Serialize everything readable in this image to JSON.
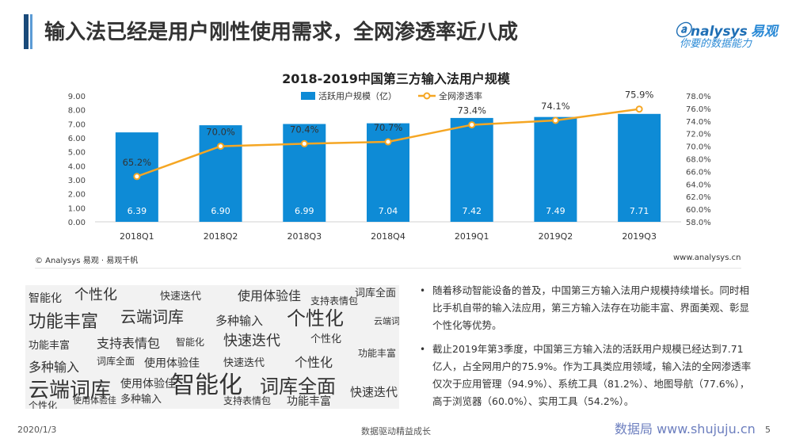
{
  "header": {
    "title": "输入法已经是用户刚性使用需求，全网渗透率近八成",
    "logo_brand": "nalysys",
    "logo_brand_cn": "易观",
    "logo_slogan": "你要的数据能力"
  },
  "chart_data": {
    "type": "bar",
    "title": "2018-2019中国第三方输入法用户规模",
    "categories": [
      "2018Q1",
      "2018Q2",
      "2018Q3",
      "2018Q4",
      "2019Q1",
      "2019Q2",
      "2019Q3"
    ],
    "series": [
      {
        "name": "活跃用户规模（亿）",
        "type": "bar",
        "axis": "left",
        "values": [
          6.39,
          6.9,
          6.99,
          7.04,
          7.42,
          7.49,
          7.71
        ],
        "labels": [
          "6.39",
          "6.90",
          "6.99",
          "7.04",
          "7.42",
          "7.49",
          "7.71"
        ]
      },
      {
        "name": "全网渗透率",
        "type": "line",
        "axis": "right",
        "values": [
          65.2,
          70.0,
          70.4,
          70.7,
          73.4,
          74.1,
          75.9
        ],
        "labels": [
          "65.2%",
          "70.0%",
          "70.4%",
          "70.7%",
          "73.4%",
          "74.1%",
          "75.9%"
        ]
      }
    ],
    "y_left": {
      "min": 0,
      "max": 9,
      "ticks": [
        "0.00",
        "1.00",
        "2.00",
        "3.00",
        "4.00",
        "5.00",
        "6.00",
        "7.00",
        "8.00",
        "9.00"
      ]
    },
    "y_right": {
      "min": 58,
      "max": 78,
      "ticks": [
        "58.0%",
        "60.0%",
        "62.0%",
        "64.0%",
        "66.0%",
        "68.0%",
        "70.0%",
        "72.0%",
        "74.0%",
        "76.0%",
        "78.0%"
      ]
    },
    "legend_position": "top-center",
    "colors": {
      "bar": "#0e8bd6",
      "line": "#f5a623",
      "bar_label": "#ffffff"
    }
  },
  "source": {
    "left": "© Analysys 易观 · 易观千帆",
    "right": "www.analysys.cn"
  },
  "word_cloud": [
    "智能化",
    "个性化",
    "快速迭代",
    "使用体验佳",
    "支持表情包",
    "词库全面",
    "功能丰富",
    "云端词库",
    "多种输入",
    "个性化",
    "功能丰富",
    "支持表情包",
    "智能化",
    "快速迭代",
    "个性化",
    "功能丰富",
    "多种输入",
    "词库全面",
    "使用体验佳",
    "快速迭代",
    "个性化",
    "云端词库",
    "使用体验佳",
    "智能化",
    "词库全面",
    "快速迭代",
    "多种输入",
    "支持表情包",
    "功能丰富",
    "个性化",
    "云端词库",
    "使用体验佳"
  ],
  "bullets": [
    "随着移动智能设备的普及，中国第三方输入法用户规模持续增长。同时相比手机自带的输入法应用，第三方输入法存在功能丰富、界面美观、彰显个性化等优势。",
    "截止2019年第3季度，中国第三方输入法的活跃用户规模已经达到7.71亿人，占全网用户的75.9%。作为工具类应用领域，输入法的全网渗透率仅次于应用管理（94.9%）、系统工具（81.2%）、地图导航（77.6%），高于浏览器（60.0%）、实用工具（54.2%）。"
  ],
  "footer": {
    "date": "2020/1/3",
    "slogan": "数据驱动精益成长",
    "site": "数据局  www.shujuju.cn",
    "page": "5"
  }
}
